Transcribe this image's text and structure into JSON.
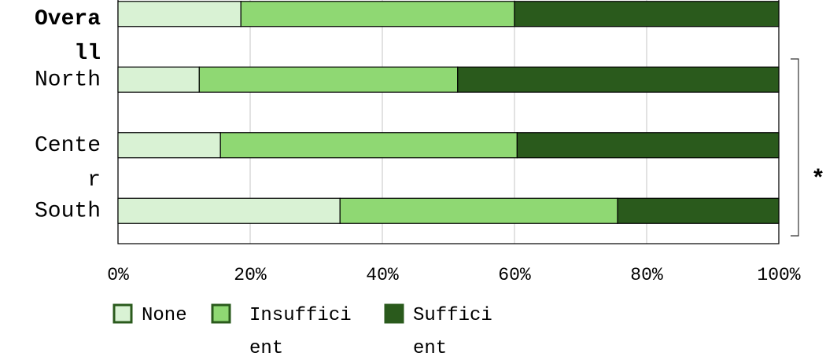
{
  "chart_data": {
    "type": "stacked_bar_horizontal",
    "categories": [
      "Overall",
      "North",
      "Center",
      "South"
    ],
    "series": [
      {
        "name": "None",
        "color": "#d9f2d4",
        "values": [
          18.6,
          12.3,
          15.5,
          33.6
        ]
      },
      {
        "name": "Insufficient",
        "color": "#8fd873",
        "values": [
          41.4,
          39.1,
          44.9,
          42.0
        ]
      },
      {
        "name": "Sufficient",
        "color": "#2a5a1c",
        "values": [
          40.0,
          48.6,
          39.6,
          24.4
        ]
      }
    ],
    "xlim": [
      0,
      100
    ],
    "xticks": [
      {
        "value": 0,
        "label": "0%"
      },
      {
        "value": 20,
        "label": "20%"
      },
      {
        "value": 40,
        "label": "40%"
      },
      {
        "value": 60,
        "label": "60%"
      },
      {
        "value": 80,
        "label": "80%"
      },
      {
        "value": 100,
        "label": "100%"
      }
    ],
    "grid": true,
    "annotation": "*"
  }
}
